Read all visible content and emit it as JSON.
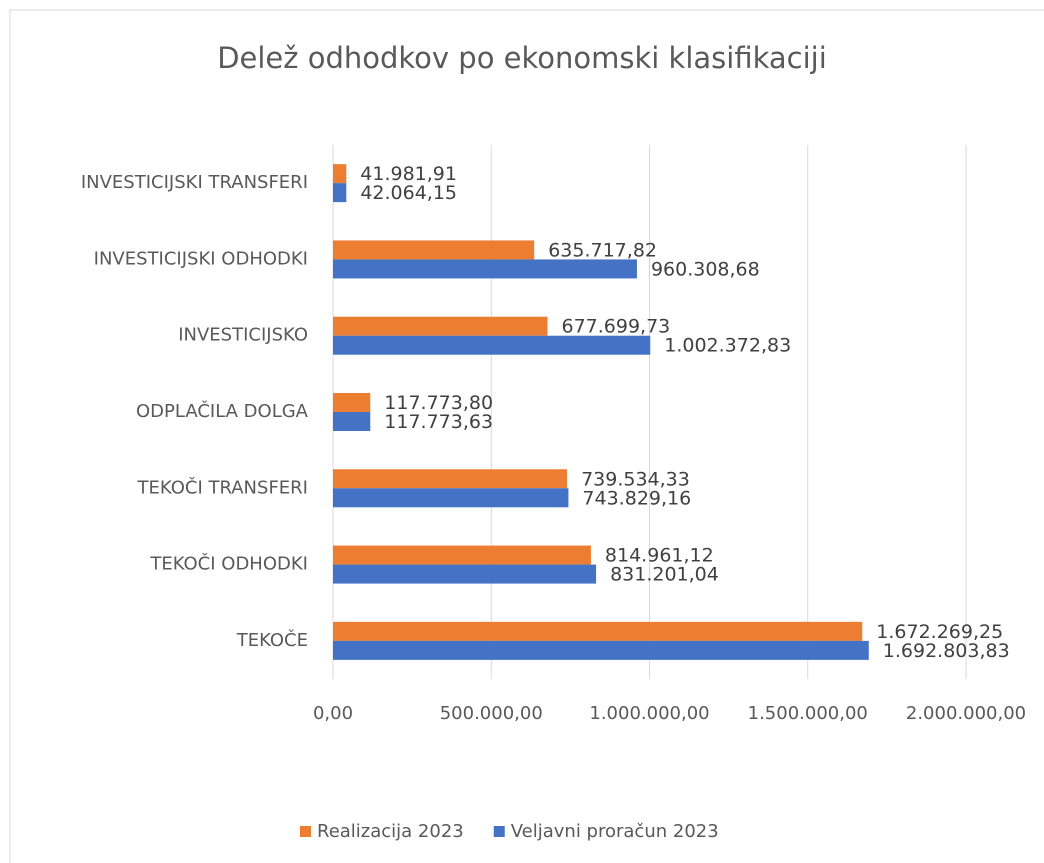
{
  "chart_data": {
    "type": "hbar",
    "title": "Delež odhodkov po ekonomski klasifikaciji",
    "categories": [
      "INVESTICIJSKI TRANSFERI",
      "INVESTICIJSKI ODHODKI",
      "INVESTICIJSKO",
      "ODPLAČILA DOLGA",
      "TEKOČI TRANSFERI",
      "TEKOČI ODHODKI",
      "TEKOČE"
    ],
    "series": [
      {
        "name": "Realizacija 2023",
        "color": "#ed7d31",
        "values": [
          41981.91,
          635717.82,
          677699.73,
          117773.8,
          739534.33,
          814961.12,
          1672269.25
        ],
        "value_labels": [
          "41.981,91",
          "635.717,82",
          "677.699,73",
          "117.773,80",
          "739.534,33",
          "814.961,12",
          "1.672.269,25"
        ]
      },
      {
        "name": "Veljavni proračun 2023",
        "color": "#4472c4",
        "values": [
          42064.15,
          960308.68,
          1002372.83,
          117773.63,
          743829.16,
          831201.04,
          1692803.83
        ],
        "value_labels": [
          "42.064,15",
          "960.308,68",
          "1.002.372,83",
          "117.773,63",
          "743.829,16",
          "831.201,04",
          "1.692.803,83"
        ]
      }
    ],
    "xlim": [
      0,
      2000000
    ],
    "xticks": [
      {
        "value": 0,
        "label": "0,00"
      },
      {
        "value": 500000,
        "label": "500.000,00"
      },
      {
        "value": 1000000,
        "label": "1.000.000,00"
      },
      {
        "value": 1500000,
        "label": "1.500.000,00"
      },
      {
        "value": 2000000,
        "label": "2.000.000,00"
      }
    ],
    "grid": true,
    "legend": "bottom"
  }
}
